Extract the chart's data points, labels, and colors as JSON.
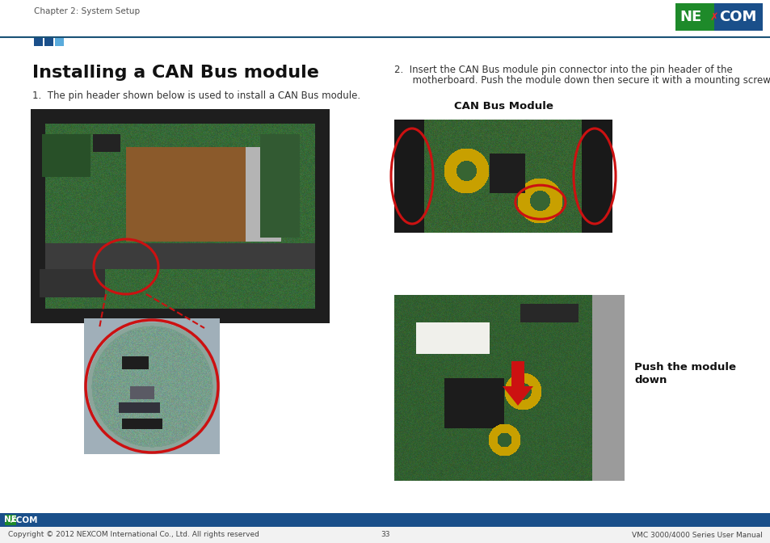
{
  "page_bg": "#ffffff",
  "header_text": "Chapter 2: System Setup",
  "header_line_color": "#1a5276",
  "title": "Installing a CAN Bus module",
  "step1": "1.  The pin header shown below is used to install a CAN Bus module.",
  "step2a": "2.  Insert the CAN Bus module pin connector into the pin header of the",
  "step2b": "      motherboard. Push the module down then secure it with a mounting screw.",
  "can_bus_label": "CAN Bus Module",
  "push_label1": "Push the module",
  "push_label2": "down",
  "footer_bar_color": "#1a4f8a",
  "footer_copyright": "Copyright © 2012 NEXCOM International Co., Ltd. All rights reserved",
  "footer_page": "33",
  "footer_manual": "VMC 3000/4000 Series User Manual",
  "nexcom_green": "#1e8a2a",
  "nexcom_blue": "#1a4f8a",
  "red_color": "#cc1111",
  "sq_colors": [
    "#1a4f8a",
    "#1a4f8a",
    "#5aabdc"
  ]
}
